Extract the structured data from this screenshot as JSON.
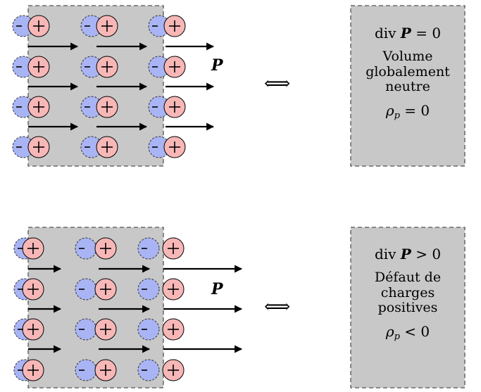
{
  "colors": {
    "slab_fill": "#c8c8c8",
    "box_fill": "#c8c8c8",
    "dashed_border": "#555555",
    "negative_fill": "#a8b4f4",
    "positive_fill": "#f7b7b7",
    "arrow": "#000000"
  },
  "panels": [
    {
      "id": "top",
      "polarization_label": "P",
      "equivalence_symbol": "⟺",
      "box": {
        "formula_div": "div",
        "formula_P": "P",
        "formula_rel": "= 0",
        "text_lines": [
          "Volume",
          "globalement",
          "neutre"
        ],
        "rho_symbol": "ρ",
        "rho_sub": "p",
        "rho_rel": "= 0"
      }
    },
    {
      "id": "bottom",
      "polarization_label": "P",
      "equivalence_symbol": "⟺",
      "box": {
        "formula_div": "div",
        "formula_P": "P",
        "formula_rel": "> 0",
        "text_lines": [
          "Défaut de",
          "charges",
          "positives"
        ],
        "rho_symbol": "ρ",
        "rho_sub": "p",
        "rho_rel": "< 0"
      }
    }
  ],
  "charge_symbols": {
    "negative": "−",
    "positive": "+"
  }
}
